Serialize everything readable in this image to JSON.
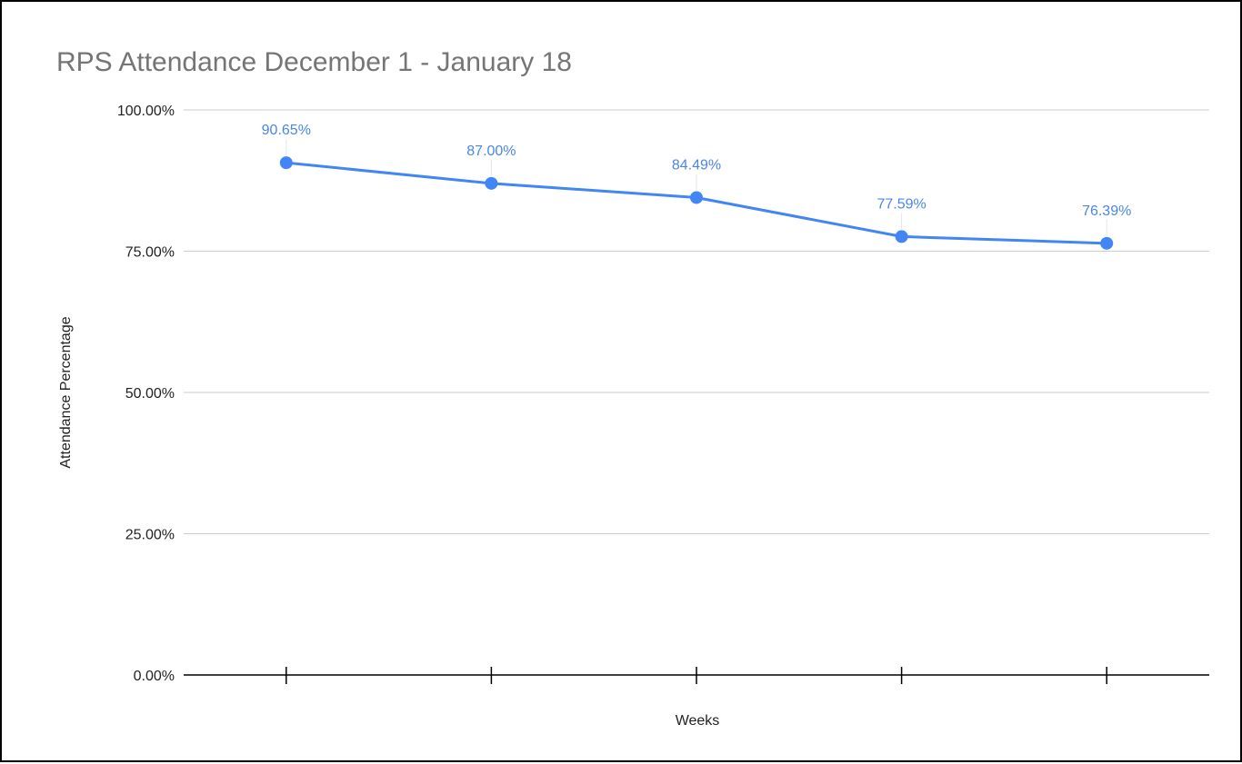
{
  "chart_data": {
    "type": "line",
    "title": "RPS Attendance December 1 - January 18",
    "xlabel": "Weeks",
    "ylabel": "Attendance Percentage",
    "ylim": [
      0,
      100
    ],
    "yticks": [
      "0.00%",
      "25.00%",
      "50.00%",
      "75.00%",
      "100.00%"
    ],
    "yticks_values": [
      0,
      25,
      50,
      75,
      100
    ],
    "categories": [
      "",
      "",
      "",
      "",
      ""
    ],
    "values": [
      90.65,
      87.0,
      84.49,
      77.59,
      76.39
    ],
    "data_labels": [
      "90.65%",
      "87.00%",
      "84.49%",
      "77.59%",
      "76.39%"
    ],
    "grid": true,
    "legend": "none",
    "colors": {
      "series": "#4285f4",
      "label": "#4a86e8",
      "grid": "#cccccc",
      "axis": "#000000"
    }
  }
}
